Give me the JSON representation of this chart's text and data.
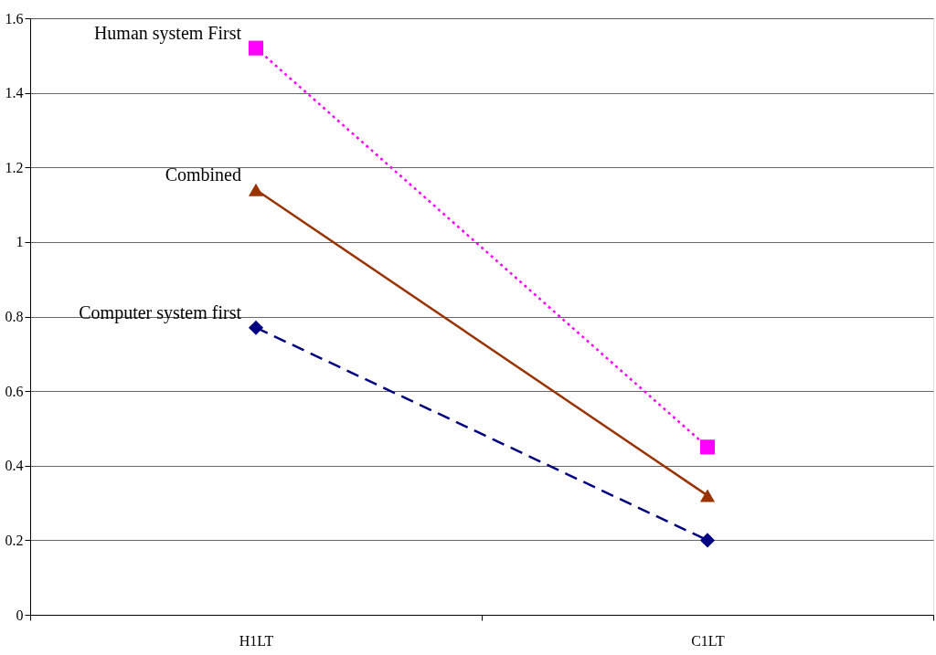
{
  "chart_data": {
    "type": "line",
    "categories": [
      "H1LT",
      "C1LT"
    ],
    "series": [
      {
        "name": "Human system First",
        "color": "#ff00ff",
        "values": [
          1.52,
          0.45
        ],
        "marker": "square",
        "line_style": "dotted"
      },
      {
        "name": "Combined",
        "color": "#993300",
        "values": [
          1.14,
          0.32
        ],
        "marker": "triangle",
        "line_style": "solid"
      },
      {
        "name": "Computer system first",
        "color": "#000080",
        "values": [
          0.77,
          0.2
        ],
        "marker": "diamond",
        "line_style": "dashed"
      }
    ],
    "ylim": [
      0,
      1.6
    ],
    "yticks": [
      0,
      0.2,
      0.4,
      0.6,
      0.8,
      1,
      1.2,
      1.4,
      1.6
    ],
    "grid": "y",
    "legend": false
  }
}
